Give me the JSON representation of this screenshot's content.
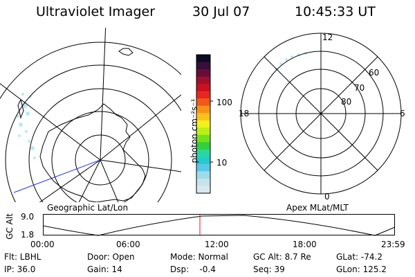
{
  "header": {
    "title": "Ultraviolet Imager",
    "date": "30 Jul 07",
    "time": "10:45:33 UT"
  },
  "colorbar": {
    "unit_label": "photon cm⁻²s⁻¹",
    "ticks": [
      "100",
      "10"
    ],
    "colors": [
      "#0b0b25",
      "#3a0d3a",
      "#6a0c3a",
      "#a0102a",
      "#cc1020",
      "#e8281e",
      "#f05a14",
      "#f7931a",
      "#f9c218",
      "#eef21a",
      "#b9ef1a",
      "#6fe21e",
      "#30d040",
      "#25d8a0",
      "#28c8d0",
      "#59c8e8",
      "#9fdce8",
      "#c8e2ea",
      "#d8e8ee"
    ]
  },
  "left_map": {
    "label": "Geographic Lat/Lon"
  },
  "right_map": {
    "label": "Apex MLat/MLT",
    "mlt_ticks": {
      "top": "12",
      "left": "18",
      "right": "6",
      "bottom": "0"
    },
    "lat_ticks": [
      "60",
      "70",
      "80"
    ]
  },
  "timeline": {
    "axis_label": "GC Alt",
    "ymax": "9.0",
    "ymin": "1.8",
    "time_ticks": [
      "00:00",
      "06:00",
      "12:00",
      "18:00",
      "23:59"
    ],
    "current_marker_time": "10:45:33"
  },
  "status": {
    "row1": {
      "flt": "Flt: LBHL",
      "door": "Door: Open",
      "mode": "Mode: Normal",
      "gc_alt": "GC Alt: 8.7 Re",
      "glat": "GLat: -74.2"
    },
    "row2": {
      "ip": "IP: 36.0",
      "gain": "Gain: 14",
      "dsp": "Dsp:    -0.4",
      "seq": "Seq: 39",
      "glon": "GLon: 125.2"
    }
  }
}
